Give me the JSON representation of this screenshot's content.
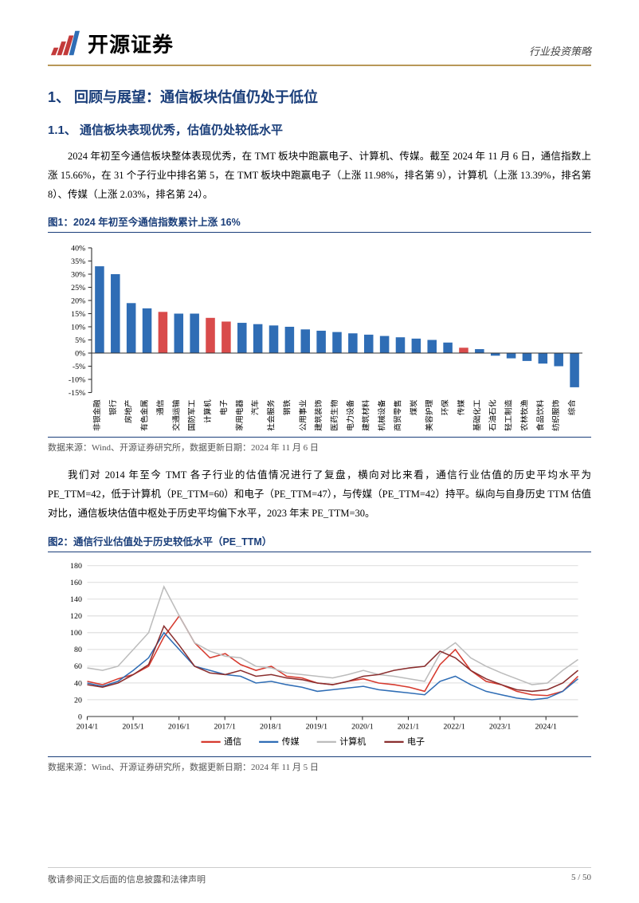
{
  "header": {
    "brand_name": "开源证券",
    "right_label": "行业投资策略"
  },
  "section1": {
    "h1": "1、 回顾与展望：通信板块估值仍处于低位",
    "h2": "1.1、 通信板块表现优秀，估值仍处较低水平",
    "para1": "2024 年初至今通信板块整体表现优秀，在 TMT 板块中跑赢电子、计算机、传媒。截至 2024 年 11 月 6 日，通信指数上涨 15.66%，在 31 个子行业中排名第 5，在 TMT 板块中跑赢电子（上涨 11.98%，排名第 9），计算机（上涨 13.39%，排名第 8）、传媒（上涨 2.03%，排名第 24）。",
    "fig1_title": "图1：2024 年初至今通信指数累计上涨 16%",
    "fig1_source": "数据来源：Wind、开源证券研究所，数据更新日期：2024 年 11 月 6 日",
    "para2": "我们对 2014 年至今 TMT 各子行业的估值情况进行了复盘，横向对比来看，通信行业估值的历史平均水平为 PE_TTM=42，低于计算机（PE_TTM=60）和电子（PE_TTM=47），与传媒（PE_TTM=42）持平。纵向与自身历史 TTM 估值对比，通信板块估值中枢处于历史平均偏下水平，2023 年末 PE_TTM=30。",
    "fig2_title": "图2：通信行业估值处于历史较低水平（PE_TTM）",
    "fig2_source": "数据来源：Wind、开源证券研究所，数据更新日期：2024 年 11 月 5 日"
  },
  "footer": {
    "disclaimer": "敬请参阅正文后面的信息披露和法律声明",
    "page": "5 / 50"
  },
  "chart1": {
    "type": "bar",
    "ylim": [
      -15,
      40
    ],
    "ytick_step": 5,
    "ytick_suffix": "%",
    "bar_width": 0.58,
    "background_color": "#ffffff",
    "axis_color": "#333333",
    "normal_bar_color": "#2f6db5",
    "highlight_bar_color": "#d94b4b",
    "highlight_indices": [
      4,
      7,
      8,
      23
    ],
    "label_fontsize": 9,
    "categories": [
      "非银金融",
      "银行",
      "房地产",
      "有色金属",
      "通信",
      "交通运输",
      "国防军工",
      "计算机",
      "电子",
      "家用电器",
      "汽车",
      "社会服务",
      "钢铁",
      "公用事业",
      "建筑装饰",
      "医药生物",
      "电力设备",
      "建筑材料",
      "机械设备",
      "商贸零售",
      "煤炭",
      "美容护理",
      "环保",
      "传媒",
      "基础化工",
      "石油石化",
      "轻工制造",
      "农林牧渔",
      "食品饮料",
      "纺织服饰",
      "综合"
    ],
    "values": [
      33,
      30,
      19,
      17,
      15.66,
      15,
      15,
      13.39,
      11.98,
      11.5,
      11,
      10.5,
      10,
      9,
      8.5,
      8,
      7.5,
      7,
      6.5,
      6,
      5.5,
      5,
      4,
      2.03,
      1.5,
      -1,
      -2,
      -3,
      -4,
      -5,
      -13
    ]
  },
  "chart2": {
    "type": "line",
    "ylim": [
      0,
      180
    ],
    "ytick_step": 20,
    "xlabels": [
      "2014/1",
      "2015/1",
      "2016/1",
      "2017/1",
      "2018/1",
      "2019/1",
      "2020/1",
      "2021/1",
      "2022/1",
      "2023/1",
      "2024/1"
    ],
    "tick_font_size": 9,
    "grid_color": "#c8c8c8",
    "axis_color": "#333333",
    "background_color": "#ffffff",
    "line_width": 1.4,
    "legend": [
      {
        "label": "通信",
        "color": "#d63a2e"
      },
      {
        "label": "传媒",
        "color": "#2f6db5"
      },
      {
        "label": "计算机",
        "color": "#bcbcbc"
      },
      {
        "label": "电子",
        "color": "#8a2e2e"
      }
    ],
    "series": {
      "通信": [
        42,
        38,
        45,
        50,
        60,
        95,
        120,
        88,
        70,
        75,
        62,
        55,
        60,
        48,
        46,
        40,
        38,
        42,
        45,
        40,
        38,
        35,
        30,
        62,
        80,
        55,
        42,
        38,
        30,
        26,
        25,
        30,
        48
      ],
      "传媒": [
        40,
        36,
        42,
        55,
        70,
        100,
        80,
        60,
        55,
        50,
        48,
        40,
        42,
        38,
        35,
        30,
        32,
        34,
        36,
        32,
        30,
        28,
        26,
        42,
        48,
        38,
        30,
        26,
        22,
        20,
        22,
        30,
        45
      ],
      "计算机": [
        58,
        55,
        60,
        80,
        100,
        155,
        120,
        88,
        78,
        72,
        70,
        60,
        58,
        52,
        50,
        48,
        46,
        50,
        55,
        50,
        48,
        45,
        42,
        75,
        88,
        70,
        60,
        52,
        45,
        38,
        40,
        55,
        68
      ],
      "电子": [
        38,
        35,
        40,
        50,
        62,
        108,
        85,
        60,
        52,
        50,
        55,
        48,
        50,
        46,
        44,
        40,
        38,
        42,
        48,
        50,
        55,
        58,
        60,
        78,
        70,
        55,
        45,
        38,
        32,
        30,
        32,
        40,
        55
      ]
    }
  },
  "logo_colors": {
    "red": "#c33a3a",
    "blue": "#2f6db5"
  }
}
